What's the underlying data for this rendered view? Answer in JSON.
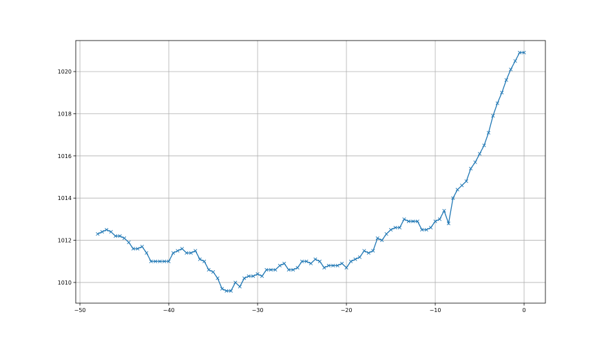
{
  "chart_data": {
    "type": "line",
    "title": "",
    "xlabel": "",
    "ylabel": "",
    "xlim": [
      -50.47,
      2.4
    ],
    "ylim": [
      1009.02,
      1021.47
    ],
    "xticks": [
      -50,
      -40,
      -30,
      -20,
      -10,
      0
    ],
    "yticks": [
      1010,
      1012,
      1014,
      1016,
      1018,
      1020
    ],
    "grid": true,
    "marker": "x",
    "color": "#1f77b4",
    "series": [
      {
        "x": [
          -48,
          -47.5,
          -47,
          -46.5,
          -46,
          -45.5,
          -45,
          -44.5,
          -44,
          -43.5,
          -43,
          -42.5,
          -42,
          -41.5,
          -41,
          -40.5,
          -40,
          -39.5,
          -39,
          -38.5,
          -38,
          -37.5,
          -37,
          -36.5,
          -36,
          -35.5,
          -35,
          -34.5,
          -34,
          -33.5,
          -33,
          -32.5,
          -32,
          -31.5,
          -31,
          -30.5,
          -30,
          -29.5,
          -29,
          -28.5,
          -28,
          -27.5,
          -27,
          -26.5,
          -26,
          -25.5,
          -25,
          -24.5,
          -24,
          -23.5,
          -23,
          -22.5,
          -22,
          -21.5,
          -21,
          -20.5,
          -20,
          -19.5,
          -19,
          -18.5,
          -18,
          -17.5,
          -17,
          -16.5,
          -16,
          -15.5,
          -15,
          -14.5,
          -14,
          -13.5,
          -13,
          -12.5,
          -12,
          -11.5,
          -11,
          -10.5,
          -10,
          -9.5,
          -9,
          -8.5,
          -8,
          -7.5,
          -7,
          -6.5,
          -6,
          -5.5,
          -5,
          -4.5,
          -4,
          -3.5,
          -3,
          -2.5,
          -2,
          -1.5,
          -1,
          -0.5,
          0
        ],
        "y": [
          1012.3,
          1012.4,
          1012.5,
          1012.4,
          1012.2,
          1012.2,
          1012.1,
          1011.9,
          1011.6,
          1011.6,
          1011.7,
          1011.4,
          1011.0,
          1011.0,
          1011.0,
          1011.0,
          1011.0,
          1011.4,
          1011.5,
          1011.6,
          1011.4,
          1011.4,
          1011.5,
          1011.1,
          1011.0,
          1010.6,
          1010.5,
          1010.2,
          1009.7,
          1009.6,
          1009.6,
          1010.0,
          1009.8,
          1010.2,
          1010.3,
          1010.3,
          1010.4,
          1010.3,
          1010.6,
          1010.6,
          1010.6,
          1010.8,
          1010.9,
          1010.6,
          1010.6,
          1010.7,
          1011.0,
          1011.0,
          1010.9,
          1011.1,
          1011.0,
          1010.7,
          1010.8,
          1010.8,
          1010.8,
          1010.9,
          1010.7,
          1011.0,
          1011.1,
          1011.2,
          1011.5,
          1011.4,
          1011.5,
          1012.1,
          1012.0,
          1012.3,
          1012.5,
          1012.6,
          1012.6,
          1013.0,
          1012.9,
          1012.9,
          1012.9,
          1012.5,
          1012.5,
          1012.6,
          1012.9,
          1013.0,
          1013.4,
          1012.8,
          1014.0,
          1014.4,
          1014.6,
          1014.8,
          1015.4,
          1015.7,
          1016.1,
          1016.5,
          1017.1,
          1017.9,
          1018.5,
          1019.0,
          1019.6,
          1020.1,
          1020.5,
          1020.9,
          1020.9
        ]
      }
    ]
  }
}
